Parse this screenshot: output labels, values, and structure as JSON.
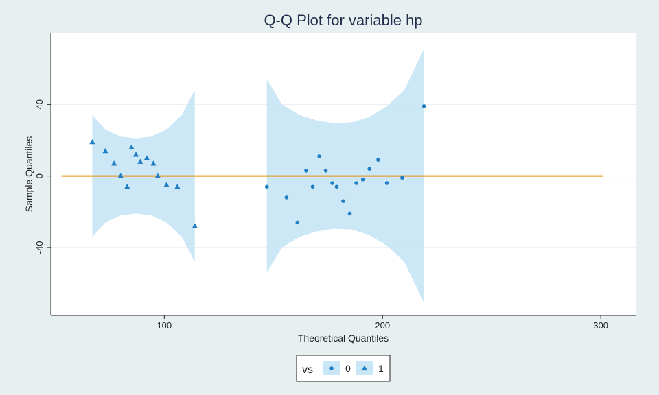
{
  "chart_data": {
    "type": "scatter",
    "title": "Q-Q Plot for variable hp",
    "xlabel": "Theoretical Quantiles",
    "ylabel": "Sample Quantiles",
    "xlim": [
      48,
      316
    ],
    "ylim": [
      -78,
      80
    ],
    "x_ticks": [
      100,
      200,
      300
    ],
    "y_ticks": [
      -40,
      0,
      40
    ],
    "grid": "horizontal",
    "legend": {
      "title": "vs",
      "position": "bottom-center",
      "entries": [
        "0",
        "1"
      ]
    },
    "reference_line": {
      "y": 0,
      "x_range": [
        64,
        133
      ],
      "x_range_2": [
        53,
        301
      ],
      "color": "#e8920c"
    },
    "series": [
      {
        "name": "0",
        "marker": "circle",
        "color": "#1f7ec4",
        "band_color": "#c9e6f6",
        "band": {
          "x": [
            147,
            154,
            162,
            170,
            178,
            186,
            194,
            202,
            210,
            219
          ],
          "upper": [
            54,
            40,
            34,
            31,
            29.5,
            30,
            33,
            39,
            48,
            71
          ],
          "lower": [
            -54,
            -40,
            -34,
            -31,
            -29.5,
            -30,
            -33,
            -39,
            -48,
            -71
          ]
        },
        "points": [
          {
            "x": 147,
            "y": -6
          },
          {
            "x": 156,
            "y": -12
          },
          {
            "x": 161,
            "y": -26
          },
          {
            "x": 165,
            "y": 3
          },
          {
            "x": 168,
            "y": -6
          },
          {
            "x": 171,
            "y": 11
          },
          {
            "x": 174,
            "y": 3
          },
          {
            "x": 177,
            "y": -4
          },
          {
            "x": 179,
            "y": -6
          },
          {
            "x": 182,
            "y": -14
          },
          {
            "x": 185,
            "y": -21
          },
          {
            "x": 188,
            "y": -4
          },
          {
            "x": 191,
            "y": -2
          },
          {
            "x": 194,
            "y": 4
          },
          {
            "x": 198,
            "y": 9
          },
          {
            "x": 202,
            "y": -4
          },
          {
            "x": 209,
            "y": -1
          },
          {
            "x": 219,
            "y": 39
          }
        ]
      },
      {
        "name": "1",
        "marker": "triangle",
        "color": "#1f7ec4",
        "band_color": "#c9e6f6",
        "band": {
          "x": [
            67,
            73,
            80,
            87,
            94,
            101,
            108,
            114
          ],
          "upper": [
            34,
            26,
            22,
            21,
            22,
            26,
            34,
            48
          ],
          "lower": [
            -34,
            -26,
            -22,
            -21,
            -22,
            -26,
            -34,
            -48
          ]
        },
        "points": [
          {
            "x": 67,
            "y": 19
          },
          {
            "x": 73,
            "y": 14
          },
          {
            "x": 77,
            "y": 7
          },
          {
            "x": 80,
            "y": 0
          },
          {
            "x": 83,
            "y": -6
          },
          {
            "x": 85,
            "y": 16
          },
          {
            "x": 87,
            "y": 12
          },
          {
            "x": 89,
            "y": 8
          },
          {
            "x": 92,
            "y": 10
          },
          {
            "x": 95,
            "y": 7
          },
          {
            "x": 97,
            "y": 0
          },
          {
            "x": 101,
            "y": -5
          },
          {
            "x": 106,
            "y": -6
          },
          {
            "x": 114,
            "y": -28
          }
        ]
      }
    ]
  }
}
